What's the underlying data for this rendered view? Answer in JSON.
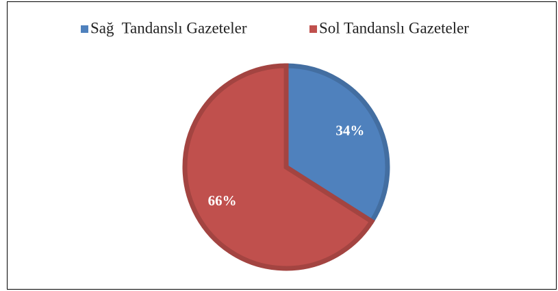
{
  "chart_data": {
    "type": "pie",
    "categories": [
      "Sağ  Tandanslı Gazeteler",
      "Sol Tandanslı Gazeteler"
    ],
    "values": [
      34,
      66
    ],
    "value_labels": [
      "34%",
      "66%"
    ],
    "colors": [
      "#4f81bd",
      "#c0504d"
    ],
    "legend": "top"
  }
}
